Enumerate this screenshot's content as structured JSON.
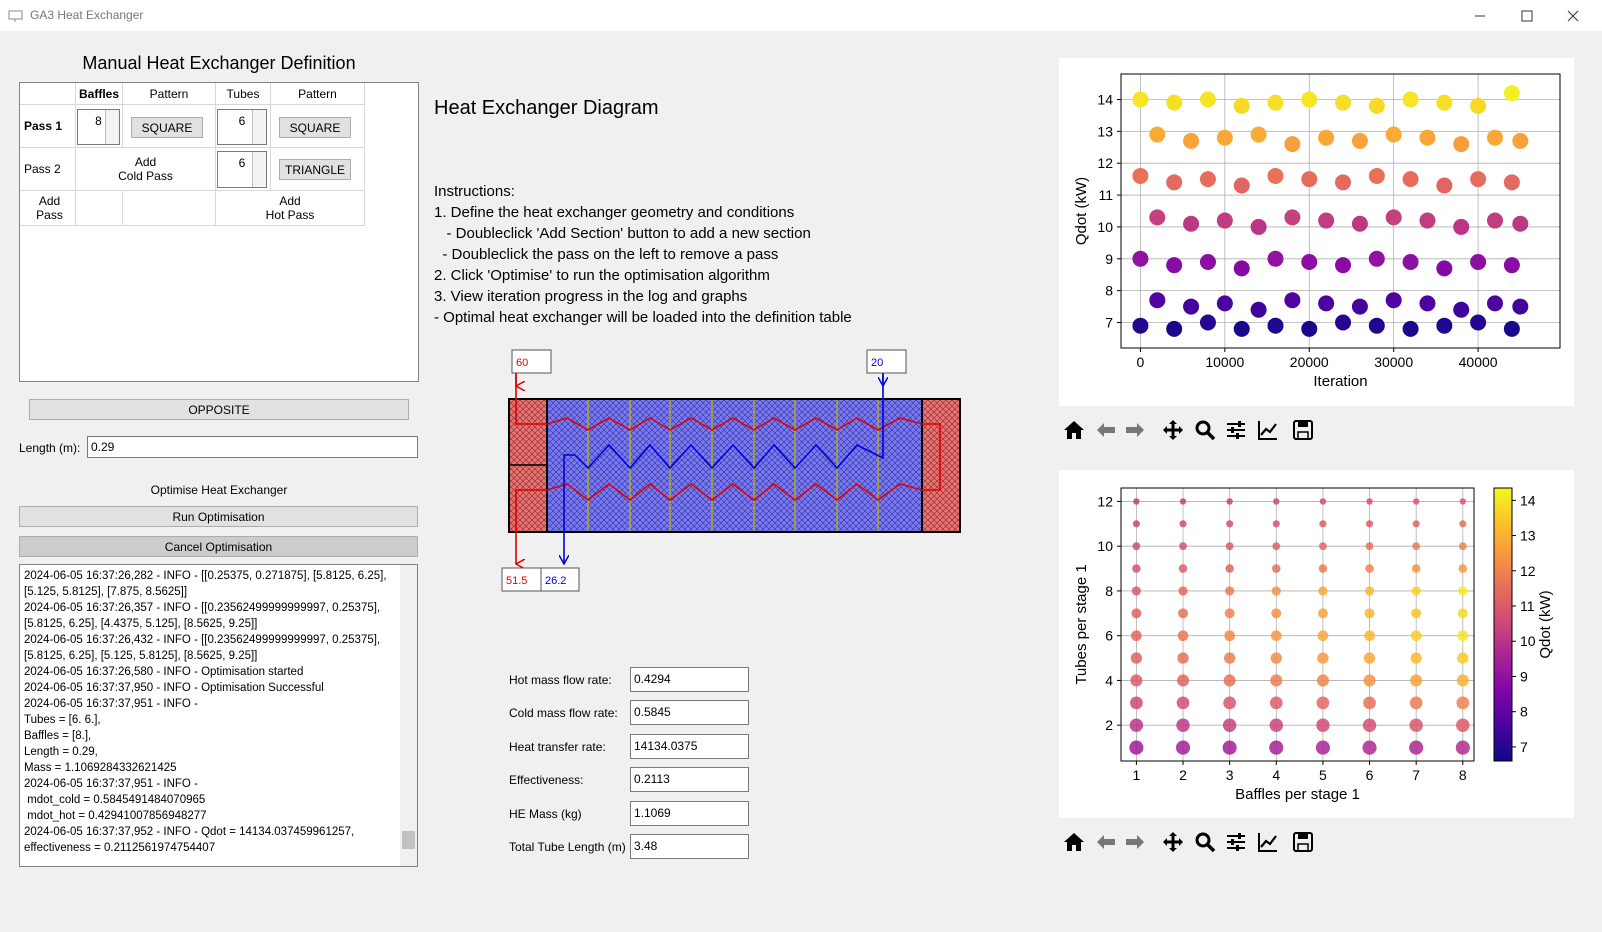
{
  "window": {
    "title": "GA3 Heat Exchanger"
  },
  "definition": {
    "title": "Manual Heat Exchanger Definition",
    "headers": [
      "Baffles",
      "Pattern",
      "Tubes",
      "Pattern"
    ],
    "pass_1": {
      "label": "Pass 1",
      "baffles": "8",
      "baffle_pattern": "SQUARE",
      "tubes": "6",
      "tube_pattern": "SQUARE"
    },
    "pass_2": {
      "label": "Pass 2",
      "add_cold": "Add\nCold Pass",
      "tubes": "6",
      "tube_pattern": "TRIANGLE"
    },
    "add_pass": {
      "label": "Add Pass",
      "add_hot": "Add\nHot Pass"
    }
  },
  "flow_button": "OPPOSITE",
  "length": {
    "label": "Length (m):",
    "value": "0.29"
  },
  "optimise": {
    "heading": "Optimise Heat Exchanger",
    "run": "Run Optimisation",
    "cancel": "Cancel Optimisation"
  },
  "log": [
    "2024-06-05 16:37:26,282 - INFO - [[0.25375, 0.271875], [5.8125, 6.25],",
    "[5.125, 5.8125], [7.875, 8.5625]]",
    "2024-06-05 16:37:26,357 - INFO - [[0.23562499999999997, 0.25375],",
    "[5.8125, 6.25], [4.4375, 5.125], [8.5625, 9.25]]",
    "2024-06-05 16:37:26,432 - INFO - [[0.23562499999999997, 0.25375],",
    "[5.8125, 6.25], [5.125, 5.8125], [8.5625, 9.25]]",
    "2024-06-05 16:37:26,580 - INFO - Optimisation started",
    "2024-06-05 16:37:37,950 - INFO - Optimisation Successful",
    "2024-06-05 16:37:37,951 - INFO -",
    "Tubes = [6. 6.],",
    "Baffles = [8.],",
    "Length = 0.29,",
    "Mass = 1.1069284332621425",
    "2024-06-05 16:37:37,951 - INFO -",
    " mdot_cold = 0.5845491484070965",
    " mdot_hot = 0.42941007856948277",
    "2024-06-05 16:37:37,952 - INFO - Qdot = 14134.037459961257,",
    "effectiveness = 0.2112561974754407"
  ],
  "diagram": {
    "title": "Heat Exchanger Diagram",
    "instructions": [
      "Instructions:",
      "1. Define the heat exchanger geometry and conditions",
      "   - Doubleclick 'Add Section' button to add a new section",
      "  - Doubleclick the pass on the left to remove a pass",
      "2. Click 'Optimise' to run the optimisation algorithm",
      "3. View iteration progress in the log and graphs",
      "- Optimal heat exchanger will be loaded into the definition table"
    ],
    "hot_in": "60",
    "cold_in": "20",
    "hot_out": "51.5",
    "cold_out": "26.2"
  },
  "results": [
    {
      "label": "Hot mass flow rate:",
      "value": "0.4294"
    },
    {
      "label": "Cold mass flow rate:",
      "value": "0.5845"
    },
    {
      "label": "Heat transfer rate:",
      "value": "14134.0375"
    },
    {
      "label": "Effectiveness:",
      "value": "0.2113"
    },
    {
      "label": "HE Mass (kg)",
      "value": "1.1069"
    },
    {
      "label": "Total Tube Length (m)",
      "value": "3.48"
    }
  ],
  "chart_data": [
    {
      "type": "scatter",
      "x_label": "Iteration",
      "y_label": "Qdot (kW)",
      "colormap": "plasma",
      "clim": [
        6.6,
        14.35
      ],
      "x": [
        0,
        4000,
        8000,
        12000,
        16000,
        20000,
        24000,
        28000,
        32000,
        36000,
        40000,
        44000,
        2000,
        6000,
        10000,
        14000,
        18000,
        22000,
        26000,
        30000,
        34000,
        38000,
        42000,
        45000,
        0,
        4000,
        8000,
        12000,
        16000,
        20000,
        24000,
        28000,
        32000,
        36000,
        40000,
        44000,
        2000,
        6000,
        10000,
        14000,
        18000,
        22000,
        26000,
        30000,
        34000,
        38000,
        42000,
        45000,
        0,
        4000,
        8000,
        12000,
        16000,
        20000,
        24000,
        28000,
        32000,
        36000,
        40000,
        44000,
        2000,
        6000,
        10000,
        14000,
        18000,
        22000,
        26000,
        30000,
        34000,
        38000,
        42000,
        45000,
        0,
        4000,
        8000,
        12000,
        16000,
        20000,
        24000,
        28000,
        32000,
        36000,
        40000,
        44000
      ],
      "y": [
        6.9,
        6.8,
        7.0,
        6.8,
        6.9,
        6.8,
        7.0,
        6.9,
        6.8,
        6.9,
        7.0,
        6.8,
        7.7,
        7.5,
        7.6,
        7.4,
        7.7,
        7.6,
        7.5,
        7.7,
        7.6,
        7.4,
        7.6,
        7.5,
        9.0,
        8.8,
        8.9,
        8.7,
        9.0,
        8.9,
        8.8,
        9.0,
        8.9,
        8.7,
        8.9,
        8.8,
        10.3,
        10.1,
        10.2,
        10.0,
        10.3,
        10.2,
        10.1,
        10.3,
        10.2,
        10.0,
        10.2,
        10.1,
        11.6,
        11.4,
        11.5,
        11.3,
        11.6,
        11.5,
        11.4,
        11.6,
        11.5,
        11.3,
        11.5,
        11.4,
        12.9,
        12.7,
        12.8,
        12.9,
        12.6,
        12.8,
        12.7,
        12.9,
        12.8,
        12.6,
        12.8,
        12.7,
        14.0,
        13.9,
        14.0,
        13.8,
        13.9,
        14.0,
        13.9,
        13.8,
        14.0,
        13.9,
        13.8,
        14.2
      ],
      "xlim": [
        -2300,
        49700
      ],
      "ylim": [
        6.2,
        14.8
      ],
      "xticks": [
        0,
        10000,
        20000,
        30000,
        40000
      ],
      "yticks": [
        7,
        8,
        9,
        10,
        11,
        12,
        13,
        14
      ],
      "grid": true
    },
    {
      "type": "scatter",
      "x_label": "Baffles per stage 1",
      "y_label": "Tubes per stage 1",
      "colorbar_label": "Qdot (kW)",
      "colormap": "plasma",
      "clim": [
        6.6,
        14.35
      ],
      "cticks": [
        7,
        8,
        9,
        10,
        11,
        12,
        13,
        14
      ],
      "x": [
        1,
        2,
        3,
        4,
        5,
        6,
        7,
        8,
        1,
        2,
        3,
        4,
        5,
        6,
        7,
        8,
        1,
        2,
        3,
        4,
        5,
        6,
        7,
        8,
        1,
        2,
        3,
        4,
        5,
        6,
        7,
        8,
        1,
        2,
        3,
        4,
        5,
        6,
        7,
        8,
        1,
        2,
        3,
        4,
        5,
        6,
        7,
        8,
        1,
        2,
        3,
        4,
        5,
        6,
        7,
        8,
        1,
        2,
        3,
        4,
        5,
        6,
        7,
        8,
        1,
        2,
        3,
        4,
        5,
        6,
        7,
        8,
        1,
        2,
        3,
        4,
        5,
        6,
        7,
        8,
        1,
        2,
        3,
        4,
        5,
        6,
        7,
        8,
        1,
        2,
        3,
        4,
        5,
        6,
        7,
        8
      ],
      "y": [
        1,
        1,
        1,
        1,
        1,
        1,
        1,
        1,
        2,
        2,
        2,
        2,
        2,
        2,
        2,
        2,
        3,
        3,
        3,
        3,
        3,
        3,
        3,
        3,
        4,
        4,
        4,
        4,
        4,
        4,
        4,
        4,
        5,
        5,
        5,
        5,
        5,
        5,
        5,
        5,
        6,
        6,
        6,
        6,
        6,
        6,
        6,
        6,
        7,
        7,
        7,
        7,
        7,
        7,
        7,
        7,
        8,
        8,
        8,
        8,
        8,
        8,
        8,
        8,
        9,
        9,
        9,
        9,
        9,
        9,
        9,
        9,
        10,
        10,
        10,
        10,
        10,
        10,
        10,
        10,
        11,
        11,
        11,
        11,
        11,
        11,
        11,
        11,
        12,
        12,
        12,
        12,
        12,
        12,
        12,
        12
      ],
      "c": [
        9.3,
        9.4,
        9.4,
        9.5,
        9.6,
        9.7,
        9.7,
        9.8,
        10.0,
        10.1,
        10.3,
        10.4,
        10.6,
        10.7,
        10.9,
        11.0,
        10.5,
        10.7,
        10.9,
        11.1,
        11.4,
        11.6,
        11.8,
        12.0,
        11.0,
        11.3,
        11.6,
        11.9,
        12.1,
        12.4,
        12.7,
        13.0,
        11.2,
        11.5,
        11.9,
        12.2,
        12.5,
        12.8,
        13.2,
        13.5,
        11.3,
        11.7,
        12.1,
        12.5,
        12.8,
        13.2,
        13.6,
        14.0,
        11.2,
        11.6,
        12.0,
        12.3,
        12.7,
        13.1,
        13.4,
        13.8,
        11.0,
        11.4,
        11.9,
        12.3,
        12.8,
        13.2,
        13.6,
        14.1,
        10.8,
        11.1,
        11.3,
        11.6,
        11.8,
        12.0,
        12.3,
        12.5,
        10.6,
        10.8,
        11.0,
        11.2,
        11.4,
        11.6,
        11.8,
        12.0,
        10.4,
        10.6,
        10.7,
        10.8,
        11.0,
        11.1,
        11.3,
        11.5,
        10.2,
        10.3,
        10.4,
        10.5,
        10.7,
        10.8,
        10.9,
        11.0
      ],
      "xlim": [
        0.67,
        8.24
      ],
      "ylim": [
        0.4,
        12.6
      ],
      "xticks": [
        1,
        2,
        3,
        4,
        5,
        6,
        7,
        8
      ],
      "yticks": [
        2,
        4,
        6,
        8,
        10,
        12
      ],
      "grid": true
    }
  ]
}
